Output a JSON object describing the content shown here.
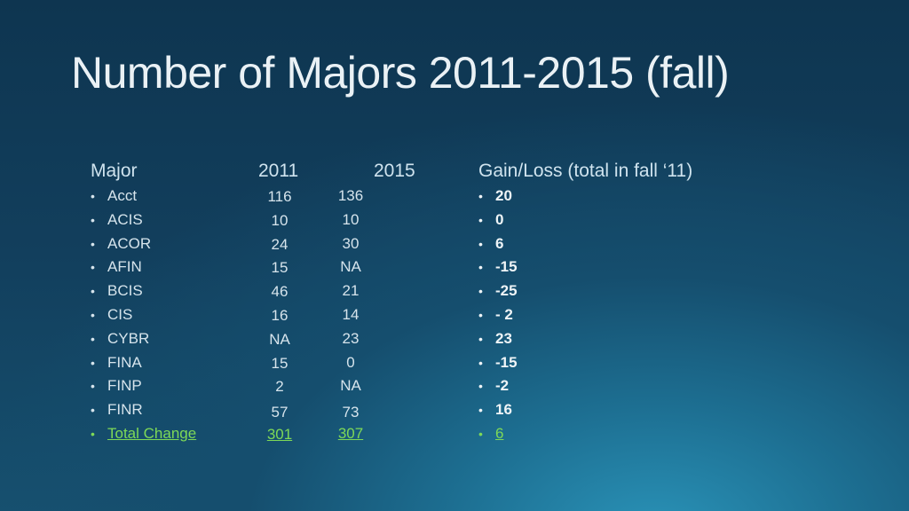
{
  "slide": {
    "title": "Number of Majors 2011-2015 (fall)"
  },
  "headers": {
    "major": "Major",
    "year_2011": "2011",
    "year_2015": "2015",
    "gain_loss": "Gain/Loss  (total in fall ‘11)"
  },
  "bullet_char": "•",
  "rows": [
    {
      "major": "Acct",
      "v2011": "116",
      "v2015": "136",
      "gain": "20"
    },
    {
      "major": "ACIS",
      "v2011": "10",
      "v2015": "10",
      "gain": "0"
    },
    {
      "major": "ACOR",
      "v2011": "24",
      "v2015": "30",
      "gain": "6"
    },
    {
      "major": "AFIN",
      "v2011": "15",
      "v2015": "NA",
      "gain": "-15"
    },
    {
      "major": "BCIS",
      "v2011": "46",
      "v2015": "21",
      "gain": "-25"
    },
    {
      "major": "CIS",
      "v2011": "16",
      "v2015": "14",
      "gain": "- 2"
    },
    {
      "major": "CYBR",
      "v2011": "NA",
      "v2015": "23",
      "gain": "23"
    },
    {
      "major": "FINA",
      "v2011": "15",
      "v2015": "0",
      "gain": "-15"
    },
    {
      "major": "FINP",
      "v2011": "2",
      "v2015": "NA",
      "gain": "-2"
    },
    {
      "major": "FINR",
      "v2011": "57",
      "v2015": "73",
      "gain": "16"
    }
  ],
  "total": {
    "major": "Total Change",
    "v2011": "301",
    "v2015": "307",
    "gain": "6"
  },
  "colors": {
    "background_top": "#0e3550",
    "background_glow": "#2a93b8",
    "text": "#d6e4ec",
    "total_green": "#7ed957"
  }
}
